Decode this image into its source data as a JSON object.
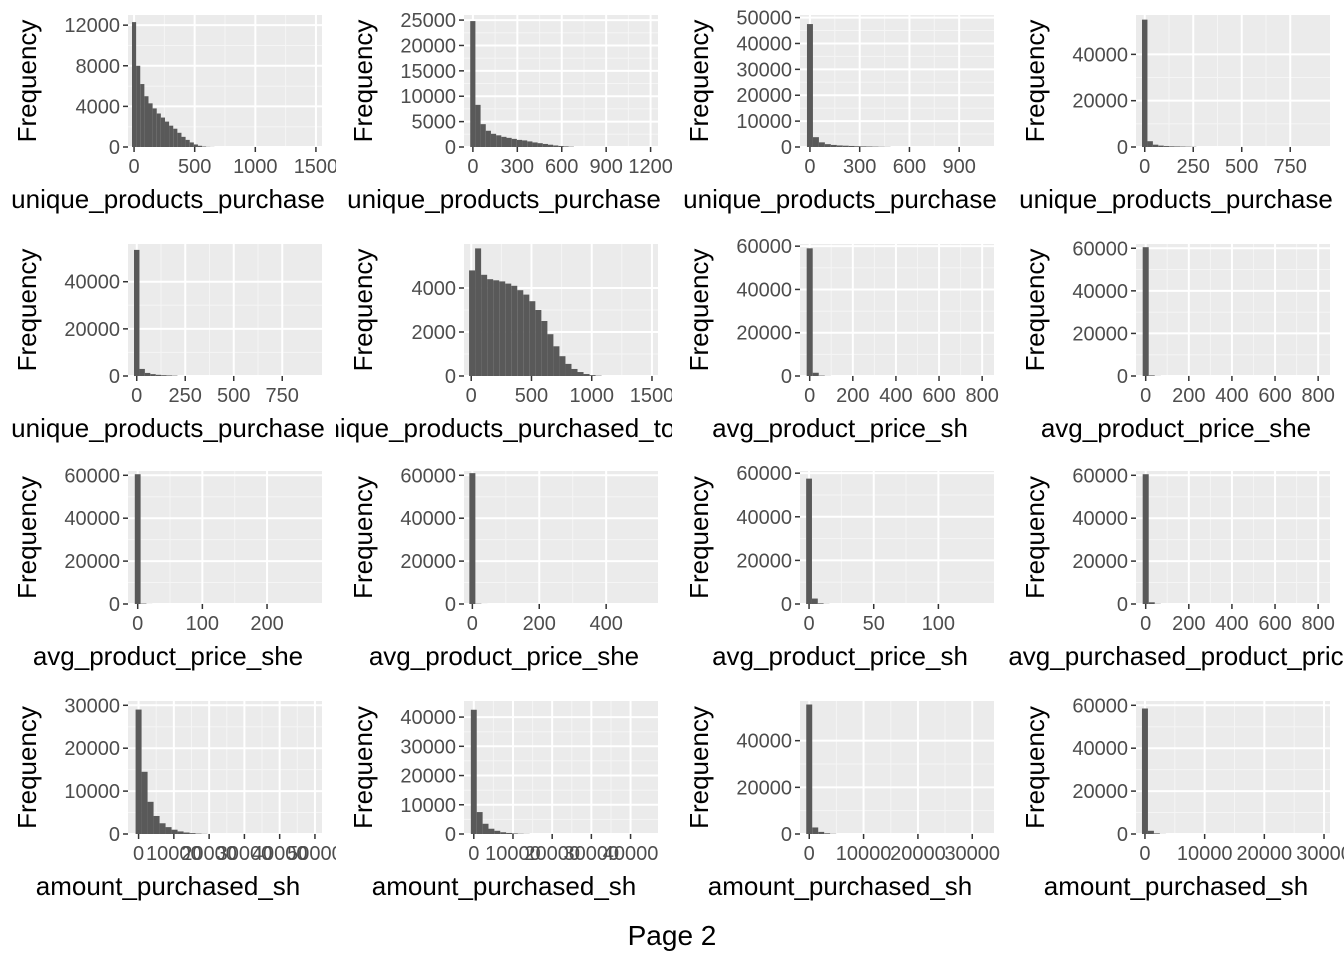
{
  "page": {
    "caption": "Page 2"
  },
  "colors": {
    "panel_bg": "#ebebeb",
    "grid_major": "#ffffff",
    "bar_fill": "#595959",
    "tick_text": "#4d4d4d",
    "title_text": "#000000"
  },
  "chart_data": [
    {
      "type": "bar",
      "xlabel": "unique_products_purchase",
      "ylabel": "Frequency",
      "xlim": [
        -50,
        1550
      ],
      "ylim": [
        0,
        13000
      ],
      "xticks": [
        {
          "v": 0,
          "label": "0"
        },
        {
          "v": 500,
          "label": "500"
        },
        {
          "v": 1000,
          "label": "1000"
        },
        {
          "v": 1500,
          "label": "1500"
        }
      ],
      "yticks": [
        {
          "v": 0,
          "label": "0"
        },
        {
          "v": 4000,
          "label": "4000"
        },
        {
          "v": 8000,
          "label": "8000"
        },
        {
          "v": 12000,
          "label": "12000"
        }
      ],
      "bins": {
        "start": -17,
        "width": 34,
        "values": [
          12300,
          8000,
          6200,
          5000,
          4300,
          3800,
          3300,
          2900,
          2500,
          2100,
          1800,
          1400,
          1000,
          700,
          450,
          250,
          120,
          50,
          20,
          10
        ]
      }
    },
    {
      "type": "bar",
      "xlabel": "unique_products_purchase",
      "ylabel": "Frequency",
      "xlim": [
        -60,
        1250
      ],
      "ylim": [
        0,
        26000
      ],
      "xticks": [
        {
          "v": 0,
          "label": "0"
        },
        {
          "v": 300,
          "label": "300"
        },
        {
          "v": 600,
          "label": "600"
        },
        {
          "v": 900,
          "label": "900"
        },
        {
          "v": 1200,
          "label": "1200"
        }
      ],
      "yticks": [
        {
          "v": 0,
          "label": "0"
        },
        {
          "v": 5000,
          "label": "5000"
        },
        {
          "v": 10000,
          "label": "10000"
        },
        {
          "v": 15000,
          "label": "15000"
        },
        {
          "v": 20000,
          "label": "20000"
        },
        {
          "v": 25000,
          "label": "25000"
        }
      ],
      "bins": {
        "start": -18,
        "width": 35,
        "values": [
          24800,
          8300,
          4500,
          3200,
          2600,
          2300,
          2000,
          1800,
          1600,
          1400,
          1300,
          1100,
          900,
          750,
          600,
          450,
          300,
          200,
          120,
          60
        ]
      }
    },
    {
      "type": "bar",
      "xlabel": "unique_products_purchase",
      "ylabel": "Frequency",
      "xlim": [
        -60,
        1110
      ],
      "ylim": [
        0,
        51000
      ],
      "xticks": [
        {
          "v": 0,
          "label": "0"
        },
        {
          "v": 300,
          "label": "300"
        },
        {
          "v": 600,
          "label": "600"
        },
        {
          "v": 900,
          "label": "900"
        }
      ],
      "yticks": [
        {
          "v": 0,
          "label": "0"
        },
        {
          "v": 10000,
          "label": "10000"
        },
        {
          "v": 20000,
          "label": "20000"
        },
        {
          "v": 30000,
          "label": "30000"
        },
        {
          "v": 40000,
          "label": "40000"
        },
        {
          "v": 50000,
          "label": "50000"
        }
      ],
      "bins": {
        "start": -18,
        "width": 36,
        "values": [
          47500,
          3800,
          1800,
          1100,
          800,
          600,
          500,
          400,
          300,
          250,
          200,
          150,
          100,
          60
        ]
      }
    },
    {
      "type": "bar",
      "xlabel": "unique_products_purchase",
      "ylabel": "Frequency",
      "xlim": [
        -45,
        955
      ],
      "ylim": [
        0,
        57000
      ],
      "xticks": [
        {
          "v": 0,
          "label": "0"
        },
        {
          "v": 250,
          "label": "250"
        },
        {
          "v": 500,
          "label": "500"
        },
        {
          "v": 750,
          "label": "750"
        }
      ],
      "yticks": [
        {
          "v": 0,
          "label": "0"
        },
        {
          "v": 20000,
          "label": "20000"
        },
        {
          "v": 40000,
          "label": "40000"
        }
      ],
      "bins": {
        "start": -14,
        "width": 28,
        "values": [
          55000,
          2500,
          1000,
          600,
          400,
          300,
          250,
          200,
          150,
          100
        ]
      }
    },
    {
      "type": "bar",
      "xlabel": "unique_products_purchase",
      "ylabel": "Frequency",
      "xlim": [
        -45,
        955
      ],
      "ylim": [
        0,
        56000
      ],
      "xticks": [
        {
          "v": 0,
          "label": "0"
        },
        {
          "v": 250,
          "label": "250"
        },
        {
          "v": 500,
          "label": "500"
        },
        {
          "v": 750,
          "label": "750"
        }
      ],
      "yticks": [
        {
          "v": 0,
          "label": "0"
        },
        {
          "v": 20000,
          "label": "20000"
        },
        {
          "v": 40000,
          "label": "40000"
        }
      ],
      "bins": {
        "start": -14,
        "width": 28,
        "values": [
          53500,
          3000,
          1300,
          800,
          500,
          350,
          250,
          150
        ]
      }
    },
    {
      "type": "bar",
      "xlabel": "unique_products_purchased_tota",
      "ylabel": "Frequency",
      "xlim": [
        -60,
        1550
      ],
      "ylim": [
        0,
        6000
      ],
      "xticks": [
        {
          "v": 0,
          "label": "0"
        },
        {
          "v": 500,
          "label": "500"
        },
        {
          "v": 1000,
          "label": "1000"
        },
        {
          "v": 1500,
          "label": "1500"
        }
      ],
      "yticks": [
        {
          "v": 0,
          "label": "0"
        },
        {
          "v": 2000,
          "label": "2000"
        },
        {
          "v": 4000,
          "label": "4000"
        }
      ],
      "bins": {
        "start": -18,
        "width": 50,
        "values": [
          4800,
          5800,
          4600,
          4400,
          4350,
          4300,
          4200,
          4100,
          3900,
          3700,
          3400,
          3000,
          2500,
          1900,
          1350,
          900,
          550,
          320,
          180,
          90,
          40,
          15
        ]
      }
    },
    {
      "type": "bar",
      "xlabel": "avg_product_price_sh",
      "ylabel": "Frequency",
      "xlim": [
        -45,
        855
      ],
      "ylim": [
        0,
        61000
      ],
      "xticks": [
        {
          "v": 0,
          "label": "0"
        },
        {
          "v": 200,
          "label": "200"
        },
        {
          "v": 400,
          "label": "400"
        },
        {
          "v": 600,
          "label": "600"
        },
        {
          "v": 800,
          "label": "800"
        }
      ],
      "yticks": [
        {
          "v": 0,
          "label": "0"
        },
        {
          "v": 20000,
          "label": "20000"
        },
        {
          "v": 40000,
          "label": "40000"
        },
        {
          "v": 60000,
          "label": "60000"
        }
      ],
      "bins": {
        "start": -14,
        "width": 28,
        "values": [
          59000,
          1500,
          200,
          50
        ]
      }
    },
    {
      "type": "bar",
      "xlabel": "avg_product_price_she",
      "ylabel": "Frequency",
      "xlim": [
        -45,
        855
      ],
      "ylim": [
        0,
        62000
      ],
      "xticks": [
        {
          "v": 0,
          "label": "0"
        },
        {
          "v": 200,
          "label": "200"
        },
        {
          "v": 400,
          "label": "400"
        },
        {
          "v": 600,
          "label": "600"
        },
        {
          "v": 800,
          "label": "800"
        }
      ],
      "yticks": [
        {
          "v": 0,
          "label": "0"
        },
        {
          "v": 20000,
          "label": "20000"
        },
        {
          "v": 40000,
          "label": "40000"
        },
        {
          "v": 60000,
          "label": "60000"
        }
      ],
      "bins": {
        "start": -14,
        "width": 28,
        "values": [
          60500,
          300,
          50
        ]
      }
    },
    {
      "type": "bar",
      "xlabel": "avg_product_price_she",
      "ylabel": "Frequency",
      "xlim": [
        -15,
        285
      ],
      "ylim": [
        0,
        62000
      ],
      "xticks": [
        {
          "v": 0,
          "label": "0"
        },
        {
          "v": 100,
          "label": "100"
        },
        {
          "v": 200,
          "label": "200"
        }
      ],
      "yticks": [
        {
          "v": 0,
          "label": "0"
        },
        {
          "v": 20000,
          "label": "20000"
        },
        {
          "v": 40000,
          "label": "40000"
        },
        {
          "v": 60000,
          "label": "60000"
        }
      ],
      "bins": {
        "start": -4.5,
        "width": 9,
        "values": [
          60500,
          200,
          30
        ]
      }
    },
    {
      "type": "bar",
      "xlabel": "avg_product_price_she",
      "ylabel": "Frequency",
      "xlim": [
        -25,
        555
      ],
      "ylim": [
        0,
        62000
      ],
      "xticks": [
        {
          "v": 0,
          "label": "0"
        },
        {
          "v": 200,
          "label": "200"
        },
        {
          "v": 400,
          "label": "400"
        }
      ],
      "yticks": [
        {
          "v": 0,
          "label": "0"
        },
        {
          "v": 20000,
          "label": "20000"
        },
        {
          "v": 40000,
          "label": "40000"
        },
        {
          "v": 60000,
          "label": "60000"
        }
      ],
      "bins": {
        "start": -9,
        "width": 18,
        "values": [
          61000,
          150,
          20
        ]
      }
    },
    {
      "type": "bar",
      "xlabel": "avg_product_price_sh",
      "ylabel": "Frequency",
      "xlim": [
        -7,
        143
      ],
      "ylim": [
        0,
        61000
      ],
      "xticks": [
        {
          "v": 0,
          "label": "0"
        },
        {
          "v": 50,
          "label": "50"
        },
        {
          "v": 100,
          "label": "100"
        }
      ],
      "yticks": [
        {
          "v": 0,
          "label": "0"
        },
        {
          "v": 20000,
          "label": "20000"
        },
        {
          "v": 40000,
          "label": "40000"
        },
        {
          "v": 60000,
          "label": "60000"
        }
      ],
      "bins": {
        "start": -2.25,
        "width": 4.5,
        "values": [
          57500,
          2500,
          300,
          60
        ]
      }
    },
    {
      "type": "bar",
      "xlabel": "avg_purchased_product_pric",
      "ylabel": "Frequency",
      "xlim": [
        -45,
        855
      ],
      "ylim": [
        0,
        62000
      ],
      "xticks": [
        {
          "v": 0,
          "label": "0"
        },
        {
          "v": 200,
          "label": "200"
        },
        {
          "v": 400,
          "label": "400"
        },
        {
          "v": 600,
          "label": "600"
        },
        {
          "v": 800,
          "label": "800"
        }
      ],
      "yticks": [
        {
          "v": 0,
          "label": "0"
        },
        {
          "v": 20000,
          "label": "20000"
        },
        {
          "v": 40000,
          "label": "40000"
        },
        {
          "v": 60000,
          "label": "60000"
        }
      ],
      "bins": {
        "start": -14,
        "width": 28,
        "values": [
          60500,
          800,
          100
        ]
      }
    },
    {
      "type": "bar",
      "xlabel": "amount_purchased_sh",
      "ylabel": "Frequency",
      "xlim": [
        -3000,
        52000
      ],
      "ylim": [
        0,
        31000
      ],
      "xticks": [
        {
          "v": 0,
          "label": "0"
        },
        {
          "v": 10000,
          "label": "10000"
        },
        {
          "v": 20000,
          "label": "20000"
        },
        {
          "v": 30000,
          "label": "30000"
        },
        {
          "v": 40000,
          "label": "40000"
        },
        {
          "v": 50000,
          "label": "50000"
        }
      ],
      "yticks": [
        {
          "v": 0,
          "label": "0"
        },
        {
          "v": 10000,
          "label": "10000"
        },
        {
          "v": 20000,
          "label": "20000"
        },
        {
          "v": 30000,
          "label": "30000"
        }
      ],
      "bins": {
        "start": -850,
        "width": 1700,
        "values": [
          29000,
          14500,
          7500,
          4200,
          2500,
          1600,
          1000,
          600,
          350,
          200,
          100,
          50
        ]
      }
    },
    {
      "type": "bar",
      "xlabel": "amount_purchased_sh",
      "ylabel": "Frequency",
      "xlim": [
        -2500,
        47000
      ],
      "ylim": [
        0,
        45500
      ],
      "xticks": [
        {
          "v": 0,
          "label": "0"
        },
        {
          "v": 10000,
          "label": "10000"
        },
        {
          "v": 20000,
          "label": "20000"
        },
        {
          "v": 30000,
          "label": "30000"
        },
        {
          "v": 40000,
          "label": "40000"
        }
      ],
      "yticks": [
        {
          "v": 0,
          "label": "0"
        },
        {
          "v": 10000,
          "label": "10000"
        },
        {
          "v": 20000,
          "label": "20000"
        },
        {
          "v": 30000,
          "label": "30000"
        },
        {
          "v": 40000,
          "label": "40000"
        }
      ],
      "bins": {
        "start": -750,
        "width": 1500,
        "values": [
          42500,
          7500,
          3500,
          1800,
          1100,
          600,
          350,
          200,
          100,
          50
        ]
      }
    },
    {
      "type": "bar",
      "xlabel": "amount_purchased_sh",
      "ylabel": "Frequency",
      "xlim": [
        -1700,
        34000
      ],
      "ylim": [
        0,
        57000
      ],
      "xticks": [
        {
          "v": 0,
          "label": "0"
        },
        {
          "v": 10000,
          "label": "10000"
        },
        {
          "v": 20000,
          "label": "20000"
        },
        {
          "v": 30000,
          "label": "30000"
        }
      ],
      "yticks": [
        {
          "v": 0,
          "label": "0"
        },
        {
          "v": 20000,
          "label": "20000"
        },
        {
          "v": 40000,
          "label": "40000"
        }
      ],
      "bins": {
        "start": -550,
        "width": 1100,
        "values": [
          55500,
          2800,
          900,
          300,
          100
        ]
      }
    },
    {
      "type": "bar",
      "xlabel": "amount_purchased_sh",
      "ylabel": "Frequency",
      "xlim": [
        -1500,
        31000
      ],
      "ylim": [
        0,
        62000
      ],
      "xticks": [
        {
          "v": 0,
          "label": "0"
        },
        {
          "v": 10000,
          "label": "10000"
        },
        {
          "v": 20000,
          "label": "20000"
        },
        {
          "v": 30000,
          "label": "30000"
        }
      ],
      "yticks": [
        {
          "v": 0,
          "label": "0"
        },
        {
          "v": 20000,
          "label": "20000"
        },
        {
          "v": 40000,
          "label": "40000"
        },
        {
          "v": 60000,
          "label": "60000"
        }
      ],
      "bins": {
        "start": -500,
        "width": 1000,
        "values": [
          58500,
          1500,
          300,
          50
        ]
      }
    }
  ]
}
